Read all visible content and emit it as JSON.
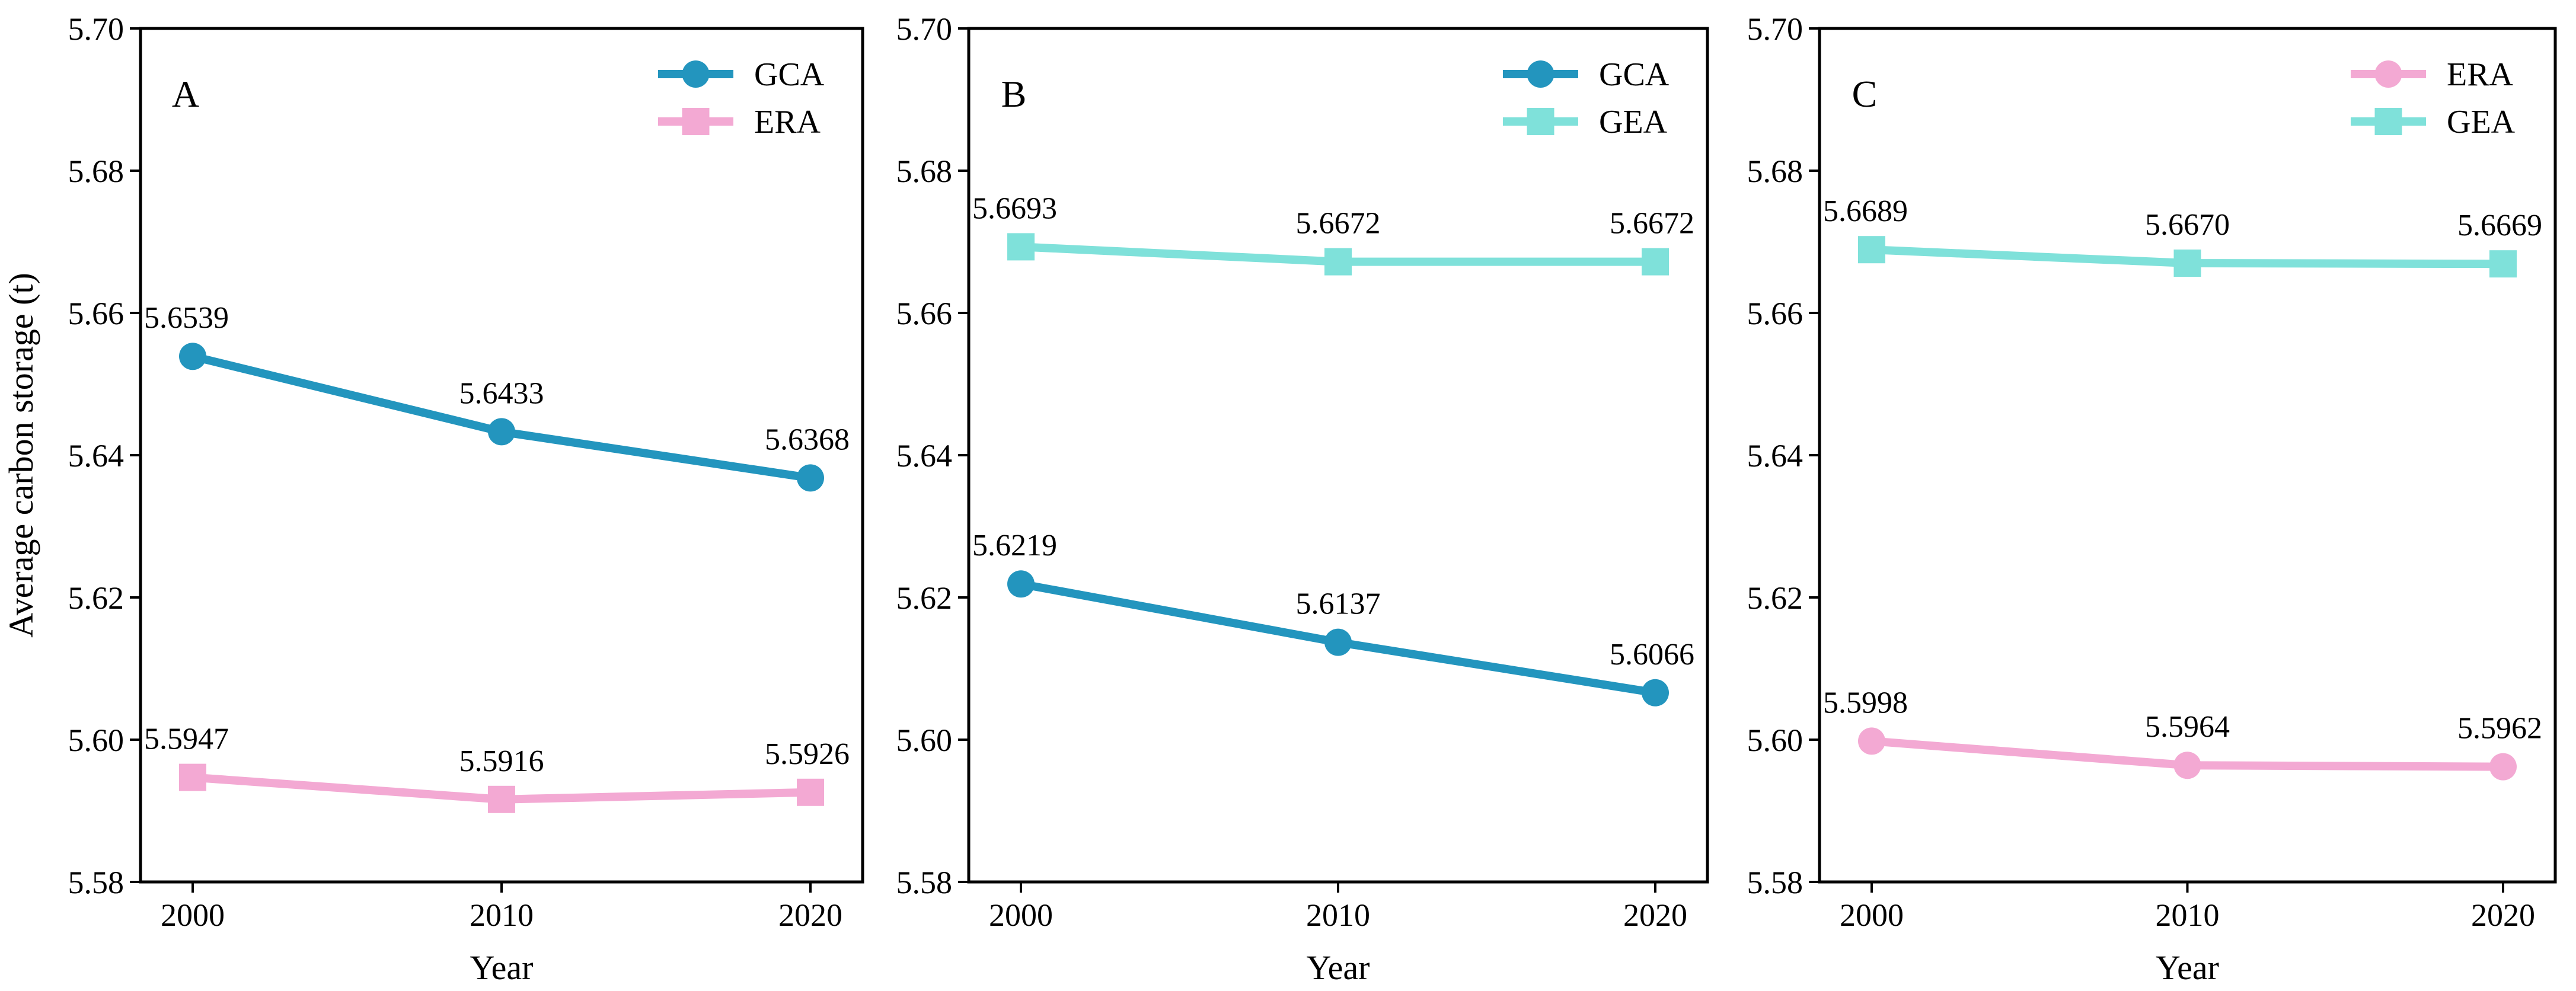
{
  "figure": {
    "ylabel": "Average carbon storage (t)",
    "xlabel": "Year",
    "background": "#ffffff",
    "axis_color": "#000000",
    "series_colors": {
      "GCA": "#2395BE",
      "ERA": "#F3A9D3",
      "GEA": "#7FE1DA"
    }
  },
  "chart_data": [
    {
      "type": "line",
      "panel_label": "A",
      "x": [
        2000,
        2010,
        2020
      ],
      "xlabel": "Year",
      "ylabel": "Average carbon storage (t)",
      "ylim": [
        5.58,
        5.7
      ],
      "yticks": [
        "5.58",
        "5.60",
        "5.62",
        "5.64",
        "5.66",
        "5.68",
        "5.70"
      ],
      "grid": false,
      "legend_position": "top-right",
      "series": [
        {
          "name": "GCA",
          "color": "#2395BE",
          "marker": "circle",
          "values": [
            5.6539,
            5.6433,
            5.6368
          ],
          "labels": [
            "5.6539",
            "5.6433",
            "5.6368"
          ]
        },
        {
          "name": "ERA",
          "color": "#F3A9D3",
          "marker": "square",
          "values": [
            5.5947,
            5.5916,
            5.5926
          ],
          "labels": [
            "5.5947",
            "5.5916",
            "5.5926"
          ]
        }
      ]
    },
    {
      "type": "line",
      "panel_label": "B",
      "x": [
        2000,
        2010,
        2020
      ],
      "xlabel": "Year",
      "ylim": [
        5.58,
        5.7
      ],
      "yticks": [
        "5.58",
        "5.60",
        "5.62",
        "5.64",
        "5.66",
        "5.68",
        "5.70"
      ],
      "grid": false,
      "legend_position": "top-right",
      "series": [
        {
          "name": "GCA",
          "color": "#2395BE",
          "marker": "circle",
          "values": [
            5.6219,
            5.6137,
            5.6066
          ],
          "labels": [
            "5.6219",
            "5.6137",
            "5.6066"
          ]
        },
        {
          "name": "GEA",
          "color": "#7FE1DA",
          "marker": "square",
          "values": [
            5.6693,
            5.6672,
            5.6672
          ],
          "labels": [
            "5.6693",
            "5.6672",
            "5.6672"
          ]
        }
      ]
    },
    {
      "type": "line",
      "panel_label": "C",
      "x": [
        2000,
        2010,
        2020
      ],
      "xlabel": "Year",
      "ylim": [
        5.58,
        5.7
      ],
      "yticks": [
        "5.58",
        "5.60",
        "5.62",
        "5.64",
        "5.66",
        "5.68",
        "5.70"
      ],
      "grid": false,
      "legend_position": "top-right",
      "series": [
        {
          "name": "ERA",
          "color": "#F3A9D3",
          "marker": "circle",
          "values": [
            5.5998,
            5.5964,
            5.5962
          ],
          "labels": [
            "5.5998",
            "5.5964",
            "5.5962"
          ]
        },
        {
          "name": "GEA",
          "color": "#7FE1DA",
          "marker": "square",
          "values": [
            5.6689,
            5.667,
            5.6669
          ],
          "labels": [
            "5.6689",
            "5.6670",
            "5.6669"
          ]
        }
      ]
    }
  ]
}
